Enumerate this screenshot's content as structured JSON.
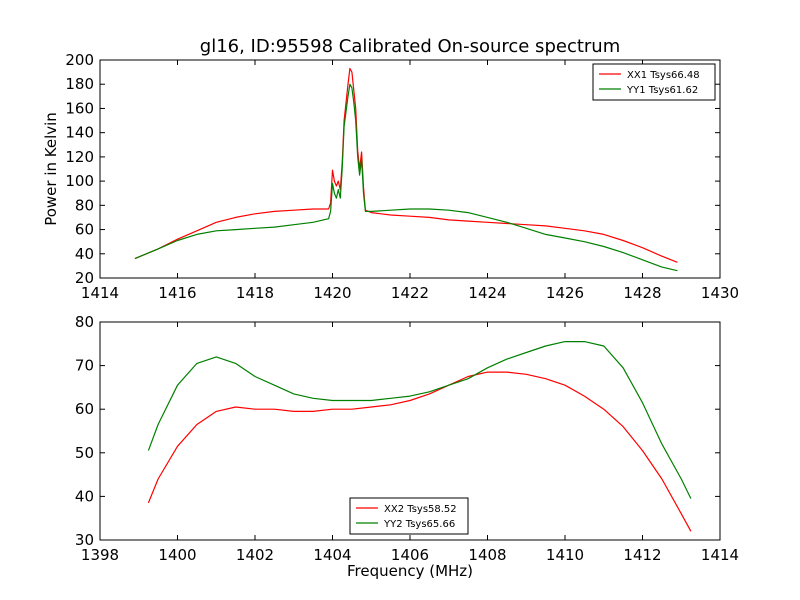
{
  "title": "gl16, ID:95598 Calibrated On-source spectrum",
  "chart_data": [
    {
      "type": "line",
      "xlabel": "",
      "ylabel": "Power in Kelvin",
      "xlim": [
        1414,
        1430
      ],
      "ylim": [
        20,
        200
      ],
      "xticks": [
        "1414",
        "1416",
        "1418",
        "1420",
        "1422",
        "1424",
        "1426",
        "1428",
        "1430"
      ],
      "yticks": [
        "20",
        "40",
        "60",
        "80",
        "100",
        "120",
        "140",
        "160",
        "180",
        "200"
      ],
      "legend_position": "top-right",
      "grid": false,
      "series": [
        {
          "name": "XX1 Tsys66.48",
          "color": "#ff0000",
          "x": [
            1414.9,
            1415.5,
            1416.0,
            1416.5,
            1417.0,
            1417.5,
            1418.0,
            1418.5,
            1419.0,
            1419.5,
            1419.9,
            1419.95,
            1420.0,
            1420.05,
            1420.1,
            1420.15,
            1420.2,
            1420.25,
            1420.3,
            1420.4,
            1420.45,
            1420.5,
            1420.55,
            1420.6,
            1420.65,
            1420.7,
            1420.75,
            1420.8,
            1420.85,
            1421.0,
            1421.5,
            1422.0,
            1422.5,
            1423.0,
            1423.5,
            1424.0,
            1424.5,
            1425.0,
            1425.5,
            1426.0,
            1426.5,
            1427.0,
            1427.5,
            1428.0,
            1428.5,
            1428.9
          ],
          "values": [
            36,
            44,
            52,
            59,
            66,
            70,
            73,
            75,
            76,
            77,
            77,
            82,
            109,
            100,
            96,
            100,
            93,
            115,
            150,
            180,
            193,
            190,
            175,
            160,
            125,
            110,
            124,
            95,
            76,
            74,
            72,
            71,
            70,
            68,
            67,
            66,
            65,
            64,
            63,
            61,
            59,
            56,
            51,
            45,
            38,
            33
          ]
        },
        {
          "name": "YY1 Tsys61.62",
          "color": "#008000",
          "x": [
            1414.9,
            1415.5,
            1416.0,
            1416.5,
            1417.0,
            1417.5,
            1418.0,
            1418.5,
            1419.0,
            1419.5,
            1419.9,
            1419.95,
            1420.0,
            1420.05,
            1420.1,
            1420.15,
            1420.2,
            1420.25,
            1420.3,
            1420.4,
            1420.45,
            1420.5,
            1420.55,
            1420.6,
            1420.65,
            1420.7,
            1420.75,
            1420.8,
            1420.85,
            1421.0,
            1421.5,
            1422.0,
            1422.5,
            1423.0,
            1423.5,
            1424.0,
            1424.5,
            1425.0,
            1425.5,
            1426.0,
            1426.5,
            1427.0,
            1427.5,
            1428.0,
            1428.5,
            1428.9
          ],
          "values": [
            36,
            44,
            51,
            56,
            59,
            60,
            61,
            62,
            64,
            66,
            69,
            75,
            98,
            90,
            86,
            93,
            86,
            110,
            145,
            170,
            180,
            177,
            165,
            150,
            120,
            105,
            118,
            90,
            75,
            75,
            76,
            77,
            77,
            76,
            74,
            70,
            66,
            61,
            56,
            53,
            50,
            46,
            41,
            35,
            29,
            26
          ]
        }
      ]
    },
    {
      "type": "line",
      "xlabel": "Frequency (MHz)",
      "ylabel": "",
      "xlim": [
        1398,
        1414
      ],
      "ylim": [
        30,
        80
      ],
      "xticks": [
        "1398",
        "1400",
        "1402",
        "1404",
        "1406",
        "1408",
        "1410",
        "1412",
        "1414"
      ],
      "yticks": [
        "30",
        "40",
        "50",
        "60",
        "70",
        "80"
      ],
      "legend_position": "bottom-center",
      "grid": false,
      "series": [
        {
          "name": "XX2 Tsys58.52",
          "color": "#ff0000",
          "x": [
            1399.25,
            1399.5,
            1400.0,
            1400.5,
            1401.0,
            1401.5,
            1402.0,
            1402.5,
            1403.0,
            1403.5,
            1404.0,
            1404.5,
            1405.0,
            1405.5,
            1406.0,
            1406.5,
            1407.0,
            1407.5,
            1408.0,
            1408.5,
            1409.0,
            1409.5,
            1410.0,
            1410.5,
            1411.0,
            1411.5,
            1412.0,
            1412.5,
            1413.0,
            1413.25
          ],
          "values": [
            38.5,
            44,
            51.5,
            56.5,
            59.5,
            60.5,
            60,
            60,
            59.5,
            59.5,
            60,
            60,
            60.5,
            61,
            62,
            63.5,
            65.5,
            67.5,
            68.5,
            68.5,
            68,
            67,
            65.5,
            63,
            60,
            56,
            50.5,
            44,
            36,
            32
          ]
        },
        {
          "name": "YY2 Tsys65.66",
          "color": "#008000",
          "x": [
            1399.25,
            1399.5,
            1400.0,
            1400.5,
            1401.0,
            1401.5,
            1402.0,
            1402.5,
            1403.0,
            1403.5,
            1404.0,
            1404.5,
            1405.0,
            1405.5,
            1406.0,
            1406.5,
            1407.0,
            1407.5,
            1408.0,
            1408.5,
            1409.0,
            1409.5,
            1410.0,
            1410.5,
            1411.0,
            1411.5,
            1412.0,
            1412.5,
            1413.0,
            1413.25
          ],
          "values": [
            50.5,
            56.5,
            65.5,
            70.5,
            72,
            70.5,
            67.5,
            65.5,
            63.5,
            62.5,
            62,
            62,
            62,
            62.5,
            63,
            64,
            65.5,
            67,
            69.5,
            71.5,
            73,
            74.5,
            75.5,
            75.5,
            74.5,
            69.5,
            61.5,
            52,
            44,
            39.5
          ]
        }
      ]
    }
  ]
}
